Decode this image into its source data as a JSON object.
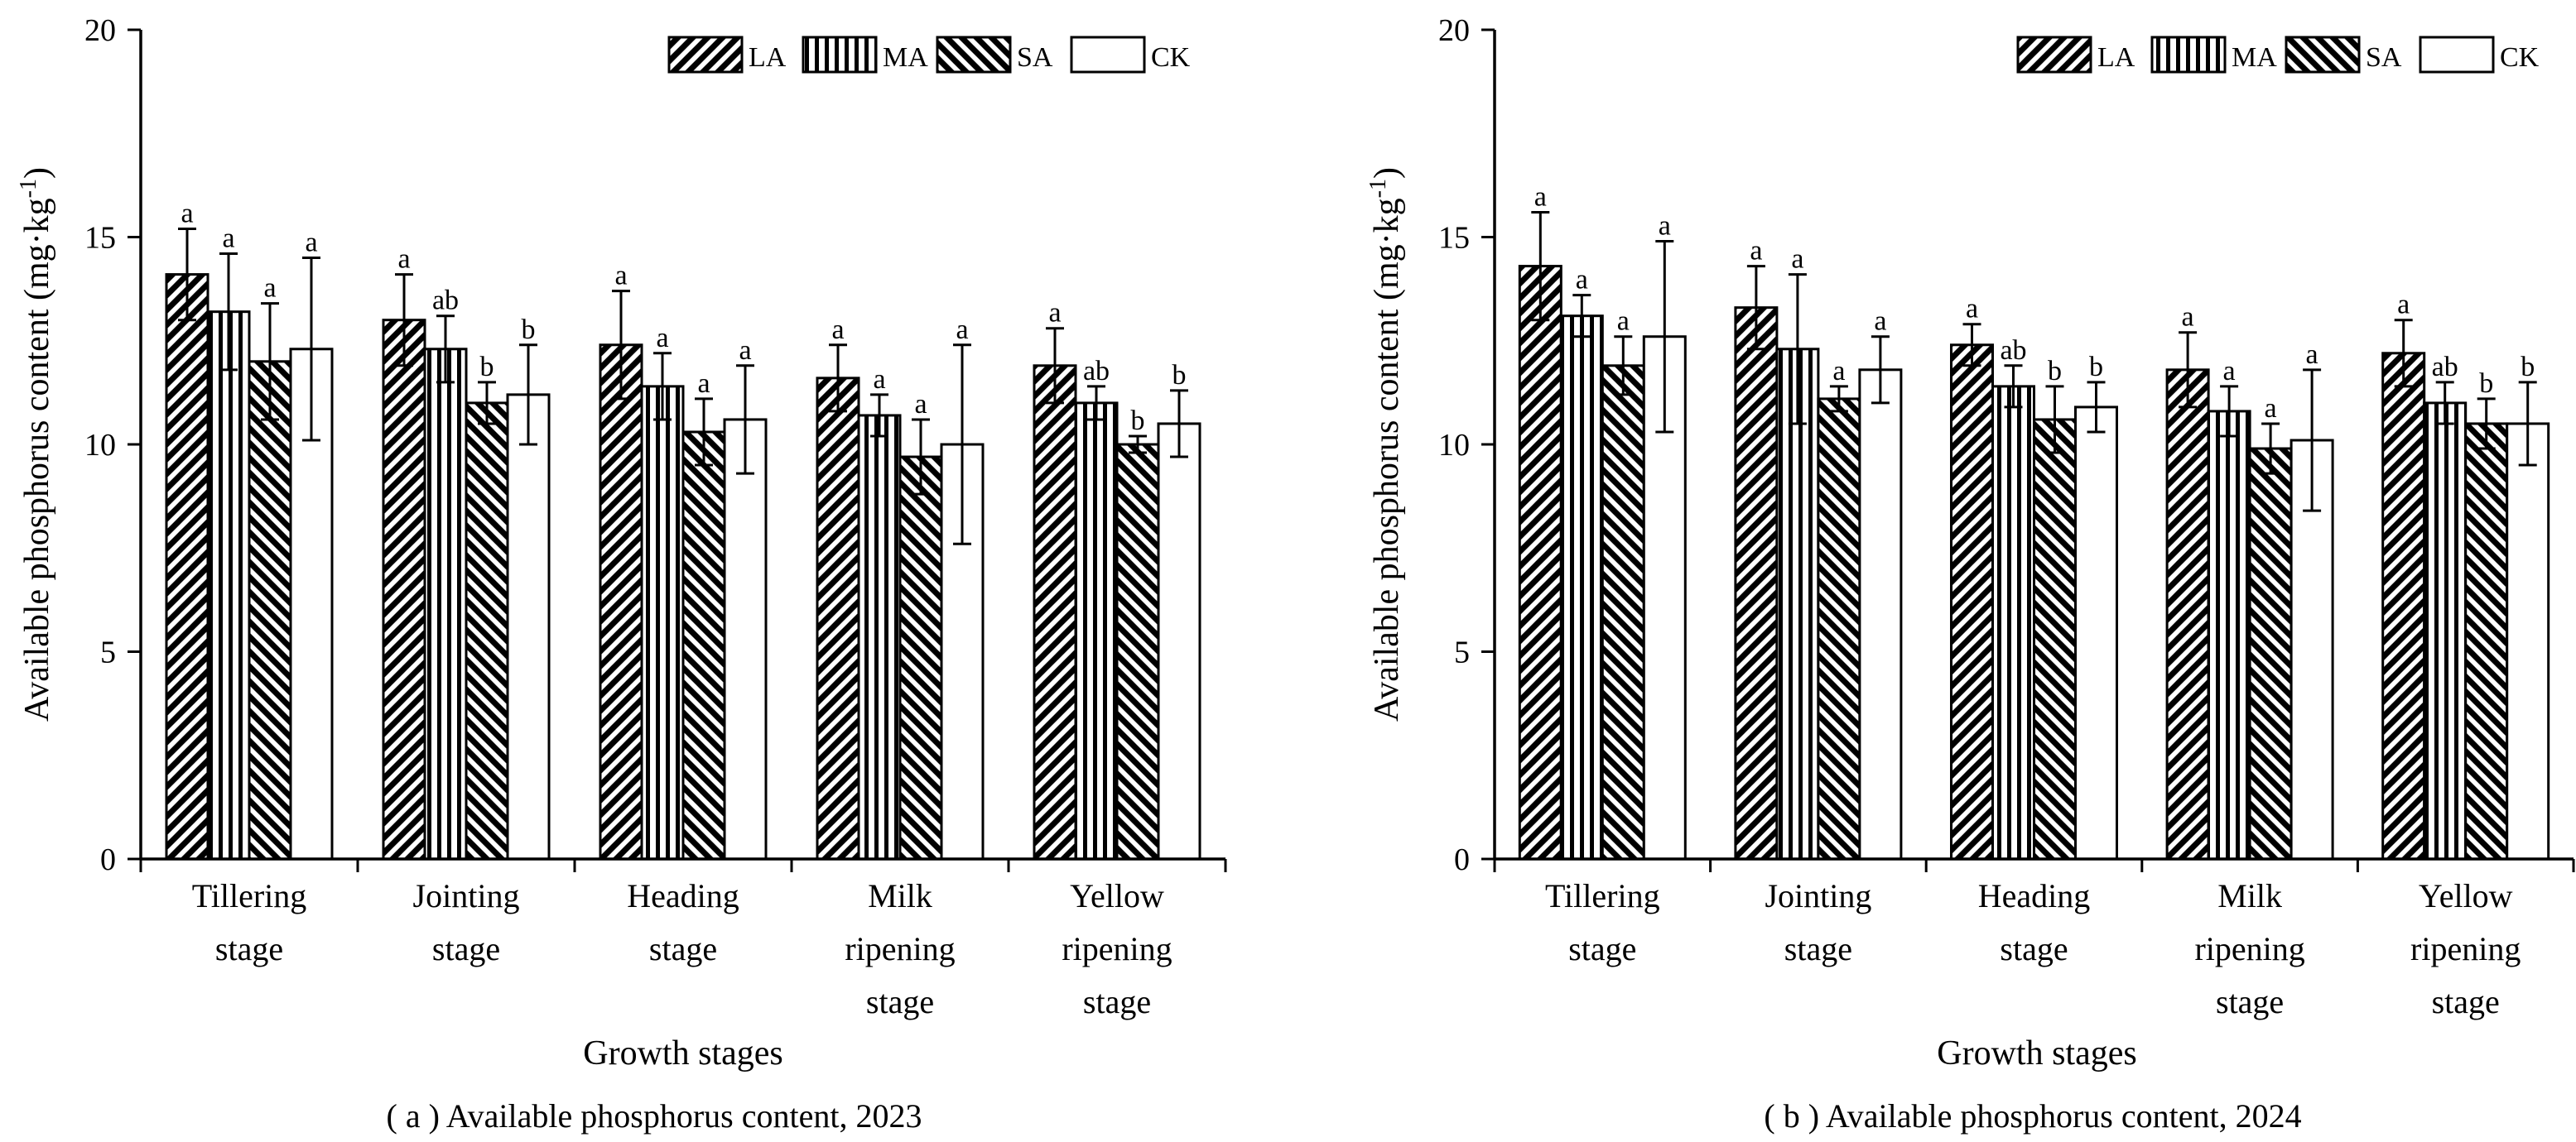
{
  "legend": [
    "LA",
    "MA",
    "SA",
    "CK"
  ],
  "chart_data": [
    {
      "type": "bar",
      "caption": "( a ) Available phosphorus content, 2023",
      "xlabel": "Growth stages",
      "ylabel": "Available phosphorus content (mg·kg",
      "ylabel_sup": "-1",
      "ylabel_close": ")",
      "ylim": [
        0,
        20
      ],
      "yticks": [
        "0",
        "5",
        "10",
        "15",
        "20"
      ],
      "categories": [
        [
          "Tillering",
          "stage"
        ],
        [
          "Jointing",
          "stage"
        ],
        [
          "Heading",
          "stage"
        ],
        [
          "Milk",
          "ripening",
          "stage"
        ],
        [
          "Yellow",
          "ripening",
          "stage"
        ]
      ],
      "series": [
        {
          "name": "LA",
          "pattern": "back-diagonal",
          "values": [
            14.1,
            13.0,
            12.4,
            11.6,
            11.9
          ],
          "errors": [
            1.1,
            1.1,
            1.3,
            0.8,
            0.9
          ],
          "letters": [
            "a",
            "a",
            "a",
            "a",
            "a"
          ]
        },
        {
          "name": "MA",
          "pattern": "vertical",
          "values": [
            13.2,
            12.3,
            11.4,
            10.7,
            11.0
          ],
          "errors": [
            1.4,
            0.8,
            0.8,
            0.5,
            0.4
          ],
          "letters": [
            "a",
            "ab",
            "a",
            "a",
            "ab"
          ]
        },
        {
          "name": "SA",
          "pattern": "forward-diagonal",
          "values": [
            12.0,
            11.0,
            10.3,
            9.7,
            10.0
          ],
          "errors": [
            1.4,
            0.5,
            0.8,
            0.9,
            0.2
          ],
          "letters": [
            "a",
            "b",
            "a",
            "a",
            "b"
          ]
        },
        {
          "name": "CK",
          "pattern": "solid-white",
          "values": [
            12.3,
            11.2,
            10.6,
            10.0,
            10.5
          ],
          "errors": [
            2.2,
            1.2,
            1.3,
            2.4,
            0.8
          ],
          "letters": [
            "a",
            "b",
            "a",
            "a",
            "b"
          ]
        }
      ]
    },
    {
      "type": "bar",
      "caption": "( b ) Available phosphorus content, 2024",
      "xlabel": "Growth stages",
      "ylabel": "Available phosphorus content (mg·kg",
      "ylabel_sup": "-1",
      "ylabel_close": ")",
      "ylim": [
        0,
        20
      ],
      "yticks": [
        "0",
        "5",
        "10",
        "15",
        "20"
      ],
      "categories": [
        [
          "Tillering",
          "stage"
        ],
        [
          "Jointing",
          "stage"
        ],
        [
          "Heading",
          "stage"
        ],
        [
          "Milk",
          "ripening",
          "stage"
        ],
        [
          "Yellow",
          "ripening",
          "stage"
        ]
      ],
      "series": [
        {
          "name": "LA",
          "pattern": "back-diagonal",
          "values": [
            14.3,
            13.3,
            12.4,
            11.8,
            12.2
          ],
          "errors": [
            1.3,
            1.0,
            0.5,
            0.9,
            0.8
          ],
          "letters": [
            "a",
            "a",
            "a",
            "a",
            "a"
          ]
        },
        {
          "name": "MA",
          "pattern": "vertical",
          "values": [
            13.1,
            12.3,
            11.4,
            10.8,
            11.0
          ],
          "errors": [
            0.5,
            1.8,
            0.5,
            0.6,
            0.5
          ],
          "letters": [
            "a",
            "a",
            "ab",
            "a",
            "ab"
          ]
        },
        {
          "name": "SA",
          "pattern": "forward-diagonal",
          "values": [
            11.9,
            11.1,
            10.6,
            9.9,
            10.5
          ],
          "errors": [
            0.7,
            0.3,
            0.8,
            0.6,
            0.6
          ],
          "letters": [
            "a",
            "a",
            "b",
            "a",
            "b"
          ]
        },
        {
          "name": "CK",
          "pattern": "solid-white",
          "values": [
            12.6,
            11.8,
            10.9,
            10.1,
            10.5
          ],
          "errors": [
            2.3,
            0.8,
            0.6,
            1.7,
            1.0
          ],
          "letters": [
            "a",
            "a",
            "b",
            "a",
            "b"
          ]
        }
      ]
    }
  ]
}
